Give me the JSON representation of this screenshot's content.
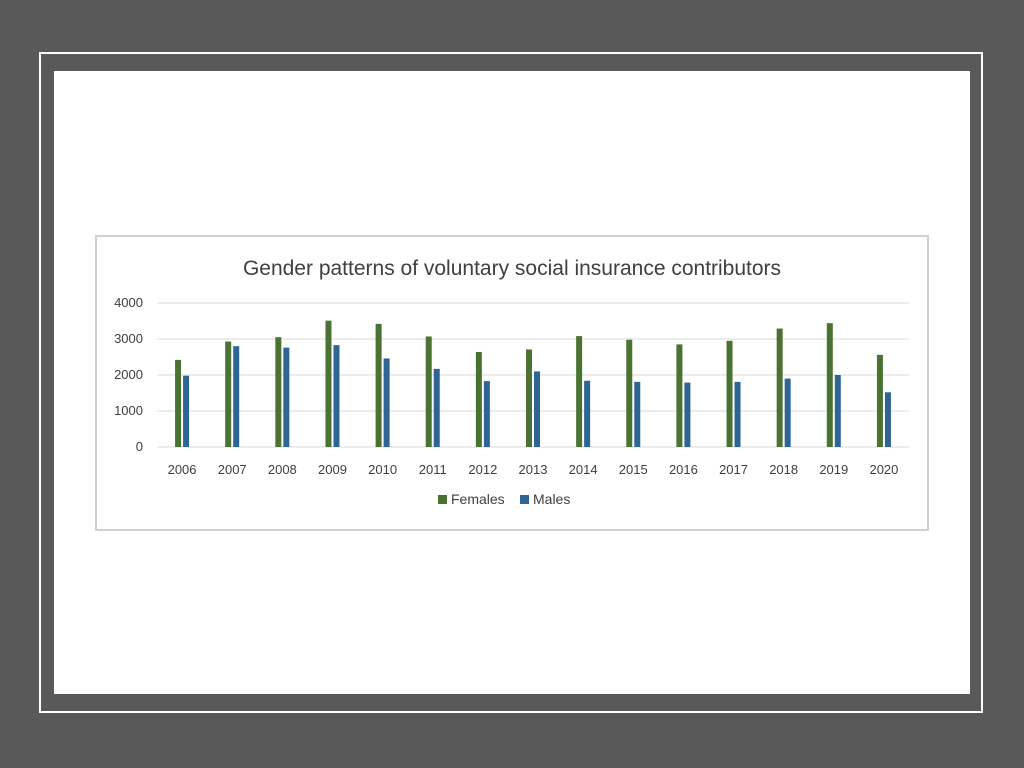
{
  "chart_data": {
    "type": "bar",
    "title": "Gender patterns of voluntary social insurance contributors",
    "xlabel": "",
    "ylabel": "",
    "categories": [
      "2006",
      "2007",
      "2008",
      "2009",
      "2010",
      "2011",
      "2012",
      "2013",
      "2014",
      "2015",
      "2016",
      "2017",
      "2018",
      "2019",
      "2020"
    ],
    "series": [
      {
        "name": "Females",
        "color": "#4a7232",
        "values": [
          2420,
          2930,
          3050,
          3510,
          3420,
          3070,
          2640,
          2710,
          3080,
          2980,
          2850,
          2950,
          3290,
          3440,
          2560
        ]
      },
      {
        "name": "Males",
        "color": "#2e6595",
        "values": [
          1980,
          2800,
          2760,
          2830,
          2460,
          2170,
          1830,
          2100,
          1840,
          1810,
          1790,
          1810,
          1900,
          2000,
          1520
        ]
      }
    ],
    "ylim": [
      0,
      4000
    ],
    "yticks": [
      0,
      1000,
      2000,
      3000,
      4000
    ],
    "grid": true,
    "legend_position": "bottom"
  }
}
